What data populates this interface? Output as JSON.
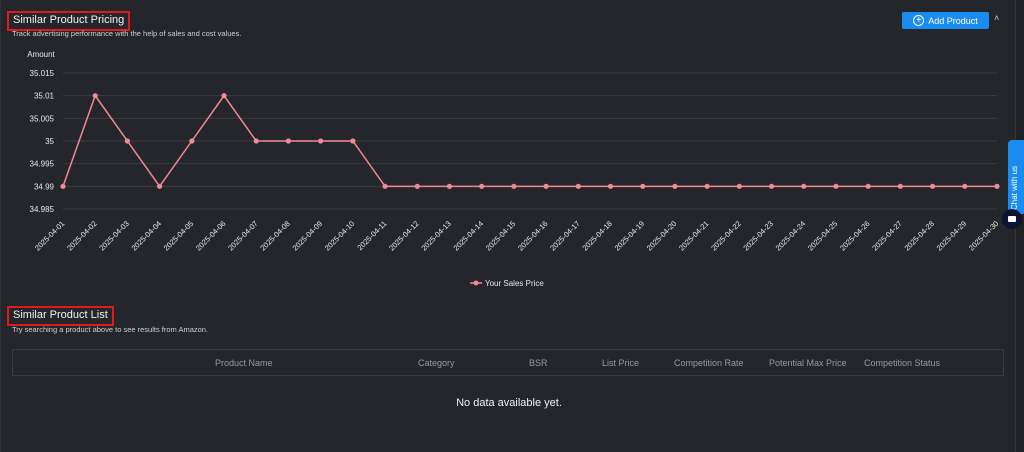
{
  "pricing": {
    "title": "Similar Product Pricing",
    "subtitle": "Track advertising performance with the help of sales and cost values.",
    "add_button": "Add Product",
    "collapse_icon": "chevron-up-icon"
  },
  "chart_data": {
    "type": "line",
    "ylabel": "Amount",
    "ylim": [
      34.985,
      35.015
    ],
    "yticks": [
      "35.015",
      "35.01",
      "35.005",
      "35",
      "34.995",
      "34.99",
      "34.985"
    ],
    "ytick_values": [
      35.015,
      35.01,
      35.005,
      35,
      34.995,
      34.99,
      34.985
    ],
    "categories": [
      "2025-04-01",
      "2025-04-02",
      "2025-04-03",
      "2025-04-04",
      "2025-04-05",
      "2025-04-06",
      "2025-04-07",
      "2025-04-08",
      "2025-04-09",
      "2025-04-10",
      "2025-04-11",
      "2025-04-12",
      "2025-04-13",
      "2025-04-14",
      "2025-04-15",
      "2025-04-16",
      "2025-04-17",
      "2025-04-18",
      "2025-04-19",
      "2025-04-20",
      "2025-04-21",
      "2025-04-22",
      "2025-04-23",
      "2025-04-24",
      "2025-04-25",
      "2025-04-26",
      "2025-04-27",
      "2025-04-28",
      "2025-04-29",
      "2025-04-30"
    ],
    "series": [
      {
        "name": "Your Sales Price",
        "color": "#f08a96",
        "values": [
          34.99,
          35.01,
          35,
          34.99,
          35,
          35.01,
          35,
          35,
          35,
          35,
          34.99,
          34.99,
          34.99,
          34.99,
          34.99,
          34.99,
          34.99,
          34.99,
          34.99,
          34.99,
          34.99,
          34.99,
          34.99,
          34.99,
          34.99,
          34.99,
          34.99,
          34.99,
          34.99,
          34.99
        ]
      }
    ],
    "legend": "bottom-center",
    "grid": true
  },
  "chat": {
    "label": "Chat with us"
  },
  "list": {
    "title": "Similar Product List",
    "subtitle": "Try searching a product above to see results from Amazon.",
    "columns": [
      "Product Name",
      "Category",
      "BSR",
      "List Price",
      "Competition Rate",
      "Potential Max Price",
      "Competition Status"
    ],
    "empty_text": "No data available yet."
  }
}
